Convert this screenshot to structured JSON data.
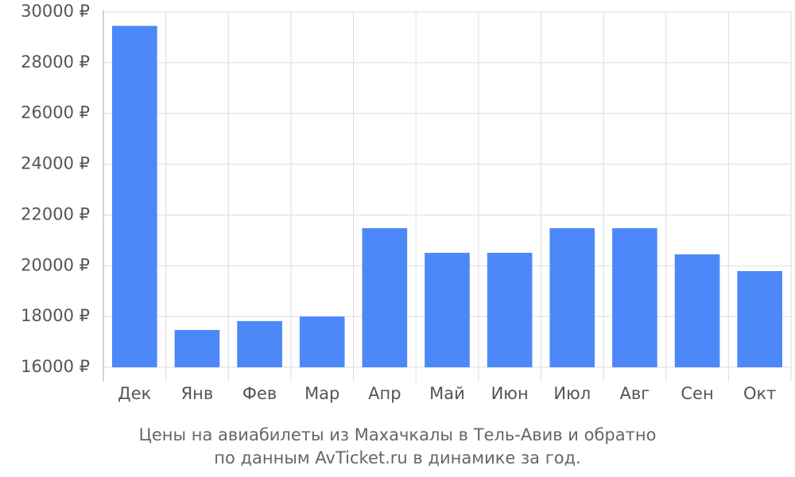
{
  "chart_data": {
    "type": "bar",
    "title": [
      "Цены на авиабилеты из Махачкалы в Тель-Авив и обратно",
      "по данным AvTicket.ru в динамике за год."
    ],
    "categories": [
      "Дек",
      "Янв",
      "Фев",
      "Мар",
      "Апр",
      "Май",
      "Июн",
      "Июл",
      "Авг",
      "Сен",
      "Окт"
    ],
    "values": [
      29450,
      17470,
      17820,
      18000,
      21480,
      20510,
      20510,
      21480,
      21480,
      20450,
      19790
    ],
    "color": "#4d88f9",
    "ylim": [
      16000,
      30000
    ],
    "yticks": [
      {
        "value": 16000,
        "label": "16000 ₽"
      },
      {
        "value": 18000,
        "label": "18000 ₽"
      },
      {
        "value": 20000,
        "label": "20000 ₽"
      },
      {
        "value": 22000,
        "label": "22000 ₽"
      },
      {
        "value": 24000,
        "label": "24000 ₽"
      },
      {
        "value": 26000,
        "label": "26000 ₽"
      },
      {
        "value": 28000,
        "label": "28000 ₽"
      },
      {
        "value": 30000,
        "label": "30000 ₽"
      }
    ],
    "grid": true
  }
}
